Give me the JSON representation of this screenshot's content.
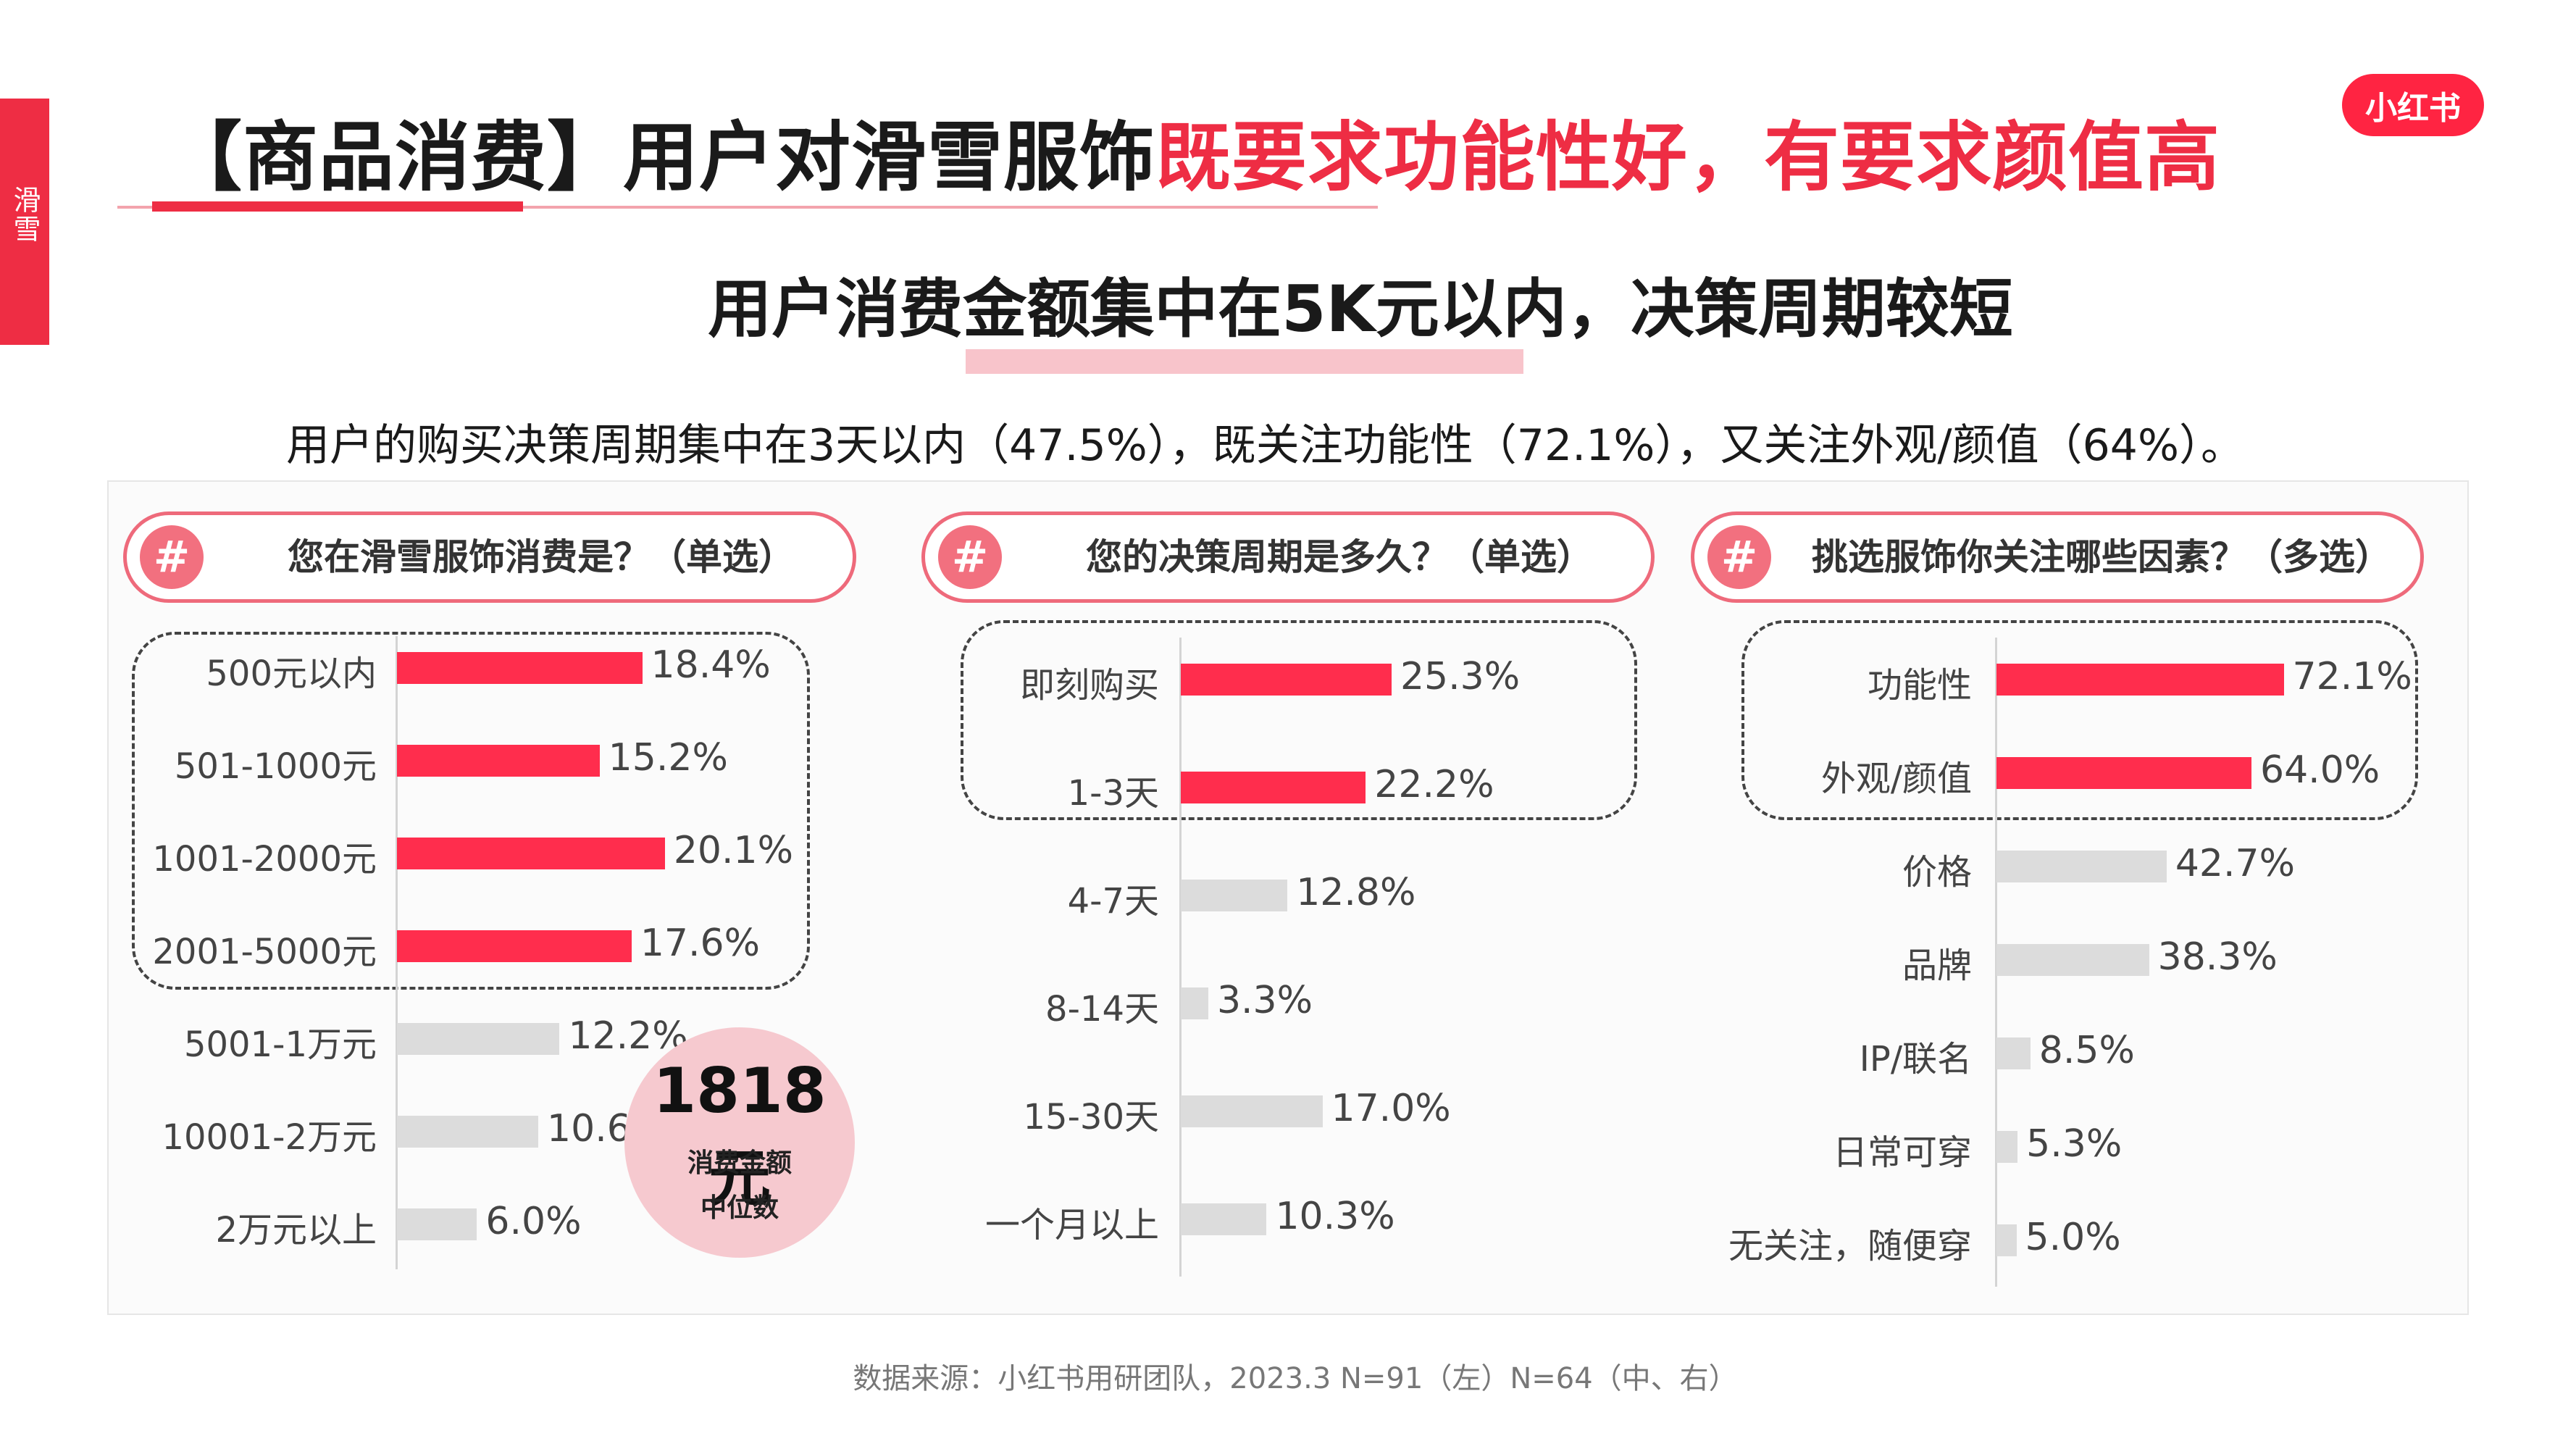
{
  "side_tab": "滑雪",
  "logo": "小红书",
  "title": {
    "black": "【商品消费】用户对滑雪服饰",
    "red": "既要求功能性好，有要求颜值高"
  },
  "subtitle": "用户消费金额集中在5K元以内，决策周期较短",
  "summary": "用户的购买决策周期集中在3天以内（47.5%），既关注功能性（72.1%），又关注外观/颜值（64%）。",
  "median": {
    "value": "1818元",
    "line1": "消费金额",
    "line2": "中位数"
  },
  "source": "数据来源：小红书用研团队，2023.3 N=91（左）N=64（中、右）",
  "colors": {
    "accent": "#ff2d4d",
    "muted": "#dcdcdc",
    "title_red": "#ee2d44"
  },
  "chart_data": [
    {
      "type": "bar",
      "orientation": "horizontal",
      "title": "您在滑雪服饰消费是？（单选）",
      "hash": "#",
      "categories": [
        "500元以内",
        "501-1000元",
        "1001-2000元",
        "2001-5000元",
        "5001-1万元",
        "10001-2万元",
        "2万元以上"
      ],
      "values": [
        18.4,
        15.2,
        20.1,
        17.6,
        12.2,
        10.6,
        6.0
      ],
      "labels": [
        "18.4%",
        "15.2%",
        "20.1%",
        "17.6%",
        "12.2%",
        "10.6%",
        "6.0%"
      ],
      "highlighted": [
        true,
        true,
        true,
        true,
        false,
        false,
        false
      ],
      "unit": "%"
    },
    {
      "type": "bar",
      "orientation": "horizontal",
      "title": "您的决策周期是多久？（单选）",
      "hash": "#",
      "categories": [
        "即刻购买",
        "1-3天",
        "4-7天",
        "8-14天",
        "15-30天",
        "一个月以上"
      ],
      "values": [
        25.3,
        22.2,
        12.8,
        3.3,
        17.0,
        10.3
      ],
      "labels": [
        "25.3%",
        "22.2%",
        "12.8%",
        "3.3%",
        "17.0%",
        "10.3%"
      ],
      "highlighted": [
        true,
        true,
        false,
        false,
        false,
        false
      ],
      "unit": "%"
    },
    {
      "type": "bar",
      "orientation": "horizontal",
      "title": "挑选服饰你关注哪些因素？（多选）",
      "hash": "#",
      "categories": [
        "功能性",
        "外观/颜值",
        "价格",
        "品牌",
        "IP/联名",
        "日常可穿",
        "无关注，随便穿"
      ],
      "values": [
        72.1,
        64.0,
        42.7,
        38.3,
        8.5,
        5.3,
        5.0
      ],
      "labels": [
        "72.1%",
        "64.0%",
        "42.7%",
        "38.3%",
        "8.5%",
        "5.3%",
        "5.0%"
      ],
      "highlighted": [
        true,
        true,
        false,
        false,
        false,
        false,
        false
      ],
      "unit": "%"
    }
  ]
}
